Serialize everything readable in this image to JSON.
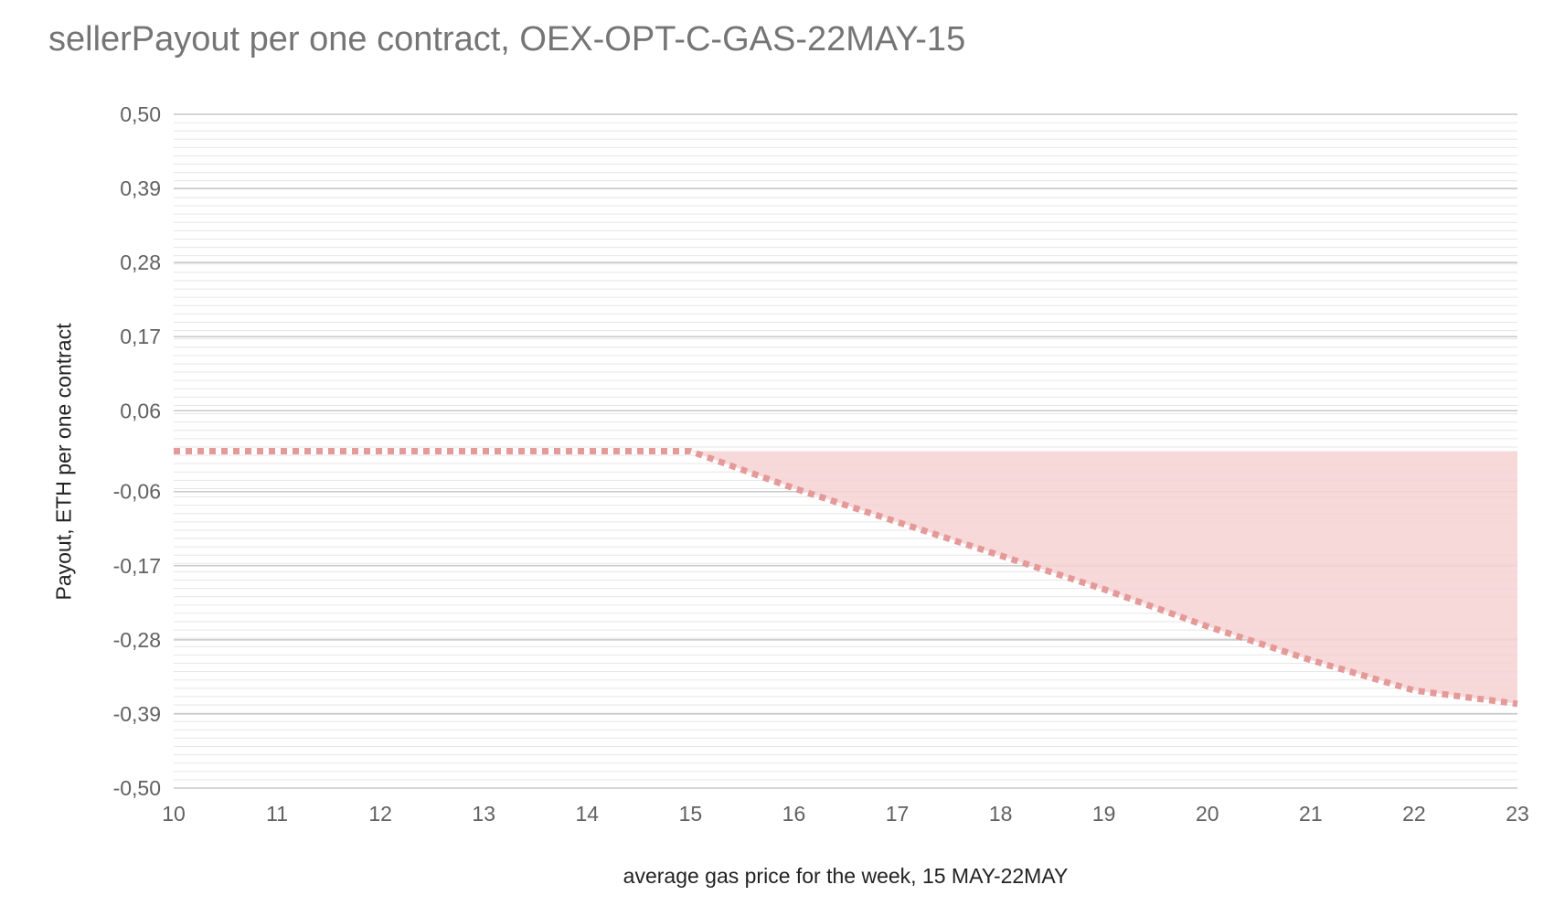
{
  "chart_data": {
    "type": "area",
    "title": "sellerPayout per one contract, OEX-OPT-C-GAS-22MAY-15",
    "xlabel": "average gas price for the week, 15 MAY-22MAY",
    "ylabel": "Payout, ETH per one contract",
    "xlim": [
      10,
      23
    ],
    "ylim": [
      -0.5,
      0.5
    ],
    "x_ticks": [
      "10",
      "11",
      "12",
      "13",
      "14",
      "15",
      "16",
      "17",
      "18",
      "19",
      "20",
      "21",
      "22",
      "23"
    ],
    "y_ticks": [
      "0,50",
      "0,39",
      "0,28",
      "0,17",
      "0,06",
      "-0,06",
      "-0,17",
      "-0,28",
      "-0,39",
      "-0,50"
    ],
    "y_tick_values": [
      0.5,
      0.39,
      0.28,
      0.17,
      0.06,
      -0.06,
      -0.17,
      -0.28,
      -0.39,
      -0.5
    ],
    "grid": true,
    "series": [
      {
        "color": "#e59a9a",
        "fill_color": "#f6d2d4",
        "line_style": "dotted",
        "x": [
          10,
          11,
          12,
          13,
          14,
          15,
          16,
          17,
          18,
          19,
          20,
          21,
          22,
          23
        ],
        "y": [
          0.0,
          0.0,
          0.0,
          0.0,
          0.0,
          0.0,
          -0.055,
          -0.105,
          -0.155,
          -0.205,
          -0.26,
          -0.31,
          -0.355,
          -0.375
        ]
      }
    ],
    "area_baseline": 0.0
  }
}
